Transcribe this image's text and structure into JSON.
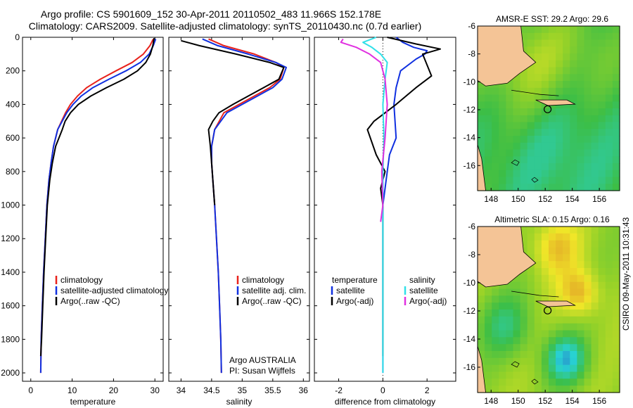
{
  "header": {
    "line1": "Argo profile: CS 5901609_152 30-Apr-2011 20110502_483 11.966S 152.178E",
    "line2": "Climatology: CARS2009. Satellite-adjusted climatology: synTS_20110430.nc (0.7d earlier)"
  },
  "side_label": "CSIRO 09-May-2011 10:31:43",
  "colors": {
    "climatology": "#e8221c",
    "satellite": "#1030e0",
    "argo": "#000000",
    "sal_satellite": "#30e0e8",
    "sal_argo": "#e030e0",
    "land": "#f4c496"
  },
  "chart_data": [
    {
      "type": "line",
      "name": "temperature-profile",
      "xlabel": "temperature",
      "xlim": [
        -2,
        32
      ],
      "ylim": [
        2050,
        0
      ],
      "xticks": [
        0,
        10,
        20,
        30
      ],
      "yticks": [
        0,
        200,
        400,
        600,
        800,
        1000,
        1200,
        1400,
        1600,
        1800,
        2000
      ],
      "legend": [
        "climatology",
        "satellite-adjusted climatology",
        "Argo(..raw -QC)"
      ],
      "series": [
        {
          "name": "climatology",
          "color": "#e8221c",
          "x": [
            29.6,
            28.8,
            27.2,
            24.5,
            20.6,
            16.8,
            13.5,
            11.3,
            9.6,
            8.4,
            6.5,
            5.5,
            4.9,
            4.4,
            3.9,
            3.5,
            3.1,
            2.8,
            2.5,
            2.4
          ],
          "y": [
            10,
            50,
            100,
            150,
            200,
            250,
            300,
            350,
            400,
            450,
            550,
            650,
            750,
            850,
            1000,
            1200,
            1400,
            1600,
            1800,
            2000
          ]
        },
        {
          "name": "satellite-adjusted climatology",
          "color": "#1030e0",
          "x": [
            30.2,
            29.6,
            28.6,
            26.5,
            23.0,
            18.9,
            15.0,
            12.2,
            10.2,
            8.7,
            6.5,
            5.5,
            4.9,
            4.4,
            3.9,
            3.5,
            3.1,
            2.8,
            2.5,
            2.4
          ],
          "y": [
            10,
            50,
            100,
            150,
            200,
            250,
            300,
            350,
            400,
            450,
            550,
            650,
            750,
            850,
            1000,
            1200,
            1400,
            1600,
            1800,
            2000
          ]
        },
        {
          "name": "Argo(..raw -QC)",
          "color": "#000000",
          "x": [
            29.8,
            29.5,
            28.9,
            27.8,
            25.8,
            22.5,
            18.3,
            14.5,
            11.5,
            9.6,
            8.3,
            7.6,
            6.0,
            5.2,
            4.6,
            4.0,
            3.6,
            3.2,
            2.9,
            2.6,
            2.4
          ],
          "y": [
            5,
            50,
            100,
            150,
            200,
            250,
            300,
            350,
            400,
            450,
            500,
            550,
            650,
            750,
            850,
            1000,
            1200,
            1400,
            1600,
            1800,
            1900
          ]
        }
      ]
    },
    {
      "type": "line",
      "name": "salinity-profile",
      "xlabel": "salinity",
      "xlim": [
        33.8,
        36.1
      ],
      "ylim": [
        2050,
        0
      ],
      "xticks": [
        34,
        34.5,
        35,
        35.5,
        36
      ],
      "legend": [
        "climatology",
        "satellite adj. clim.",
        "Argo(..raw -QC)"
      ],
      "annotation": [
        "Argo AUSTRALIA",
        "PI: Susan Wijffels"
      ],
      "series": [
        {
          "name": "climatology",
          "color": "#e8221c",
          "x": [
            34.45,
            34.7,
            35.2,
            35.55,
            35.68,
            35.62,
            35.45,
            35.2,
            34.95,
            34.7,
            34.55,
            34.5,
            34.5,
            34.52,
            34.55,
            34.58,
            34.61,
            34.63,
            34.65,
            34.66
          ],
          "y": [
            10,
            50,
            100,
            150,
            180,
            250,
            300,
            350,
            400,
            450,
            550,
            650,
            750,
            850,
            1000,
            1200,
            1400,
            1600,
            1800,
            2000
          ]
        },
        {
          "name": "satellite adj. clim.",
          "color": "#1030e0",
          "x": [
            34.35,
            34.6,
            35.1,
            35.55,
            35.72,
            35.65,
            35.5,
            35.25,
            35.0,
            34.75,
            34.55,
            34.5,
            34.5,
            34.52,
            34.55,
            34.58,
            34.61,
            34.63,
            34.65,
            34.66
          ],
          "y": [
            10,
            50,
            100,
            150,
            180,
            250,
            300,
            350,
            400,
            450,
            550,
            650,
            750,
            850,
            1000,
            1200,
            1400,
            1600,
            1800,
            2000
          ]
        },
        {
          "name": "Argo(..raw -QC)",
          "color": "#000000",
          "x": [
            34.0,
            34.3,
            34.9,
            35.45,
            35.68,
            35.6,
            35.35,
            35.1,
            34.85,
            34.62,
            34.52,
            34.45,
            34.48,
            34.5,
            34.52,
            34.55
          ],
          "y": [
            20,
            50,
            100,
            150,
            180,
            250,
            300,
            350,
            400,
            450,
            500,
            550,
            650,
            750,
            850,
            1000
          ]
        }
      ]
    },
    {
      "type": "line",
      "name": "difference-profile",
      "xlabel": "difference from climatology",
      "xlim": [
        -3.1,
        3.3
      ],
      "ylim": [
        2050,
        0
      ],
      "xticks": [
        -2,
        0,
        2
      ],
      "legend_left": [
        "temperature",
        "satellite",
        "Argo(-adj)"
      ],
      "legend_right": [
        "salinity",
        "satellite",
        "Argo(-adj)"
      ],
      "series": [
        {
          "name": "temperature satellite",
          "color": "#1030e0",
          "x": [
            0.6,
            0.9,
            1.4,
            2.0,
            1.9,
            1.5,
            0.8,
            0.6,
            0.5,
            0.6,
            0.3,
            0.2,
            0.1,
            0.0,
            0.0,
            0.0,
            0.0,
            0.0,
            0.0
          ],
          "y": [
            0,
            30,
            60,
            80,
            100,
            130,
            200,
            300,
            400,
            600,
            700,
            800,
            900,
            1000,
            1200,
            1400,
            1600,
            1800,
            2000
          ]
        },
        {
          "name": "temperature Argo(-adj)",
          "color": "#000000",
          "x": [
            0.2,
            1.5,
            2.6,
            1.8,
            2.2,
            1.5,
            0.6,
            -0.4,
            -0.7,
            -0.3,
            0.1,
            -0.1,
            0.0,
            0.0,
            0.0,
            0.0
          ],
          "y": [
            0,
            40,
            70,
            100,
            230,
            300,
            400,
            500,
            550,
            700,
            800,
            900,
            1000,
            1400,
            1700,
            1900
          ]
        },
        {
          "name": "salinity satellite",
          "color": "#30e0e8",
          "x": [
            -0.3,
            -0.9,
            -0.5,
            -0.1,
            0.2,
            0.1,
            0.0,
            0.05,
            0.0,
            0.0,
            0.0,
            0.0,
            0.0
          ],
          "y": [
            0,
            30,
            60,
            100,
            150,
            250,
            400,
            600,
            800,
            1000,
            1400,
            1800,
            2000
          ]
        },
        {
          "name": "salinity Argo(-adj)",
          "color": "#e030e0",
          "x": [
            -1.8,
            -1.9,
            -1.2,
            -0.6,
            -0.1,
            0.1,
            0.2,
            0.1,
            -0.05,
            0.0,
            -0.1
          ],
          "y": [
            10,
            30,
            60,
            100,
            150,
            250,
            400,
            600,
            800,
            1000,
            1100
          ]
        }
      ]
    },
    {
      "type": "heatmap",
      "name": "amsr-sst-map",
      "title": "AMSR-E SST: 29.2 Argo: 29.6",
      "xlim": [
        147,
        157.5
      ],
      "ylim": [
        -17.8,
        -6
      ],
      "xticks": [
        148,
        150,
        152,
        154,
        156
      ],
      "yticks": [
        -6,
        -8,
        -10,
        -12,
        -14,
        -16
      ],
      "marker": {
        "lon": 152.178,
        "lat": -11.966
      }
    },
    {
      "type": "heatmap",
      "name": "altimetric-sla-map",
      "title": "Altimetric SLA: 0.15 Argo: 0.16",
      "xlim": [
        147,
        157.5
      ],
      "ylim": [
        -17.8,
        -6
      ],
      "xticks": [
        148,
        150,
        152,
        154,
        156
      ],
      "yticks": [
        -6,
        -8,
        -10,
        -12,
        -14,
        -16
      ],
      "marker": {
        "lon": 152.178,
        "lat": -11.966
      }
    }
  ]
}
